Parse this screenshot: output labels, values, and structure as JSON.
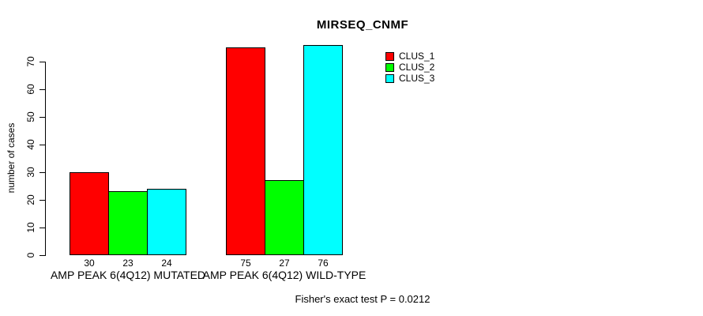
{
  "title": "MIRSEQ_CNMF",
  "footer": "Fisher's exact test P = 0.0212",
  "chart_data": {
    "type": "bar",
    "title": "MIRSEQ_CNMF",
    "xlabel": "",
    "ylabel": "number of cases",
    "categories": [
      "AMP PEAK  6(4Q12) MUTATED",
      "AMP PEAK  6(4Q12) WILD-TYPE"
    ],
    "series": [
      {
        "name": "CLUS_1",
        "color": "#FF0000",
        "values": [
          30,
          75
        ]
      },
      {
        "name": "CLUS_2",
        "color": "#00FF00",
        "values": [
          23,
          27
        ]
      },
      {
        "name": "CLUS_3",
        "color": "#00FFFF",
        "values": [
          24,
          76
        ]
      }
    ],
    "bar_value_labels": [
      [
        "30",
        "23",
        "24"
      ],
      [
        "75",
        "27",
        "76"
      ]
    ],
    "yticks": [
      0,
      10,
      20,
      30,
      40,
      50,
      60,
      70
    ],
    "ylim": [
      0,
      70
    ],
    "grid": false,
    "legend_position": "top-right",
    "legend_entries": [
      "CLUS_1",
      "CLUS_2",
      "CLUS_3"
    ],
    "annotation": "Fisher's exact test P = 0.0212",
    "colors": {
      "bar_border": "#000000",
      "text": "#000000",
      "background": "#FFFFFF"
    }
  }
}
